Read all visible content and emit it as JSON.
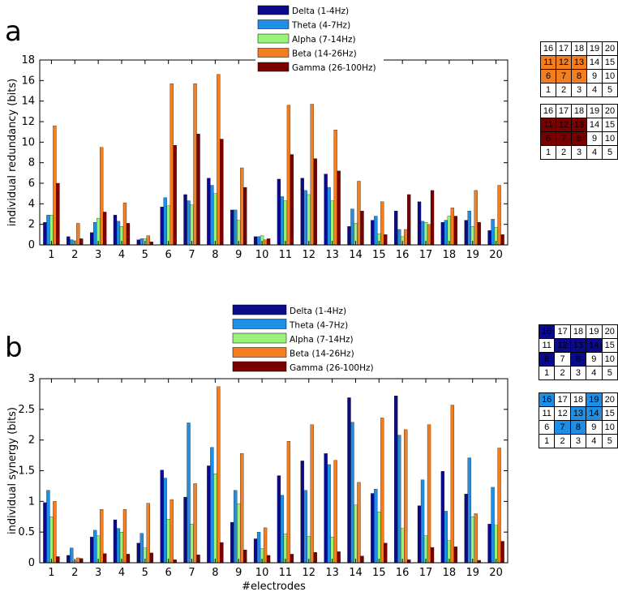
{
  "panels": [
    {
      "letter": "a"
    },
    {
      "letter": "b"
    }
  ],
  "chart_data": [
    {
      "type": "bar",
      "title": "",
      "xlabel": "",
      "ylabel": "individual redundancy (bits)",
      "ylim": [
        0,
        18
      ],
      "yticks": [
        0,
        2,
        4,
        6,
        8,
        10,
        12,
        14,
        16,
        18
      ],
      "categories": [
        "1",
        "2",
        "3",
        "4",
        "5",
        "6",
        "7",
        "8",
        "9",
        "10",
        "11",
        "12",
        "13",
        "14",
        "15",
        "16",
        "17",
        "18",
        "19",
        "20"
      ],
      "series": [
        {
          "name": "Delta (1-4Hz)",
          "color": "#0a0a8c",
          "values": [
            2.2,
            0.8,
            1.2,
            2.9,
            0.5,
            3.7,
            4.9,
            6.5,
            3.4,
            0.8,
            6.4,
            6.5,
            6.9,
            1.8,
            2.4,
            3.3,
            4.2,
            2.2,
            2.4,
            1.4
          ]
        },
        {
          "name": "Theta (4-7Hz)",
          "color": "#1f8fe6",
          "values": [
            2.9,
            0.5,
            2.2,
            2.3,
            0.6,
            4.6,
            4.3,
            5.8,
            3.4,
            0.8,
            4.7,
            5.3,
            5.6,
            3.5,
            2.8,
            1.5,
            2.3,
            2.4,
            3.3,
            2.5
          ]
        },
        {
          "name": "Alpha (7-14Hz)",
          "color": "#99f27a",
          "values": [
            2.9,
            0.4,
            2.6,
            1.8,
            0.6,
            3.8,
            3.9,
            5.0,
            2.4,
            0.9,
            4.3,
            4.9,
            4.3,
            2.1,
            1.1,
            0.8,
            2.2,
            2.8,
            1.8,
            1.7
          ]
        },
        {
          "name": "Beta (14-26Hz)",
          "color": "#f27e1f",
          "values": [
            11.6,
            2.1,
            9.5,
            4.1,
            0.9,
            15.7,
            15.7,
            16.6,
            7.5,
            0.5,
            13.6,
            13.7,
            11.2,
            6.2,
            4.2,
            1.5,
            2.0,
            3.6,
            5.3,
            5.8
          ]
        },
        {
          "name": "Gamma (26-100Hz)",
          "color": "#7a0000",
          "values": [
            6.0,
            0.6,
            3.2,
            2.1,
            0.3,
            9.7,
            10.8,
            10.3,
            5.6,
            0.6,
            8.8,
            8.4,
            7.2,
            3.3,
            1.0,
            4.9,
            5.3,
            2.8,
            2.2,
            1.0
          ]
        }
      ],
      "legend": "top-center"
    },
    {
      "type": "bar",
      "title": "",
      "xlabel": "#electrodes",
      "ylabel": "individual synergy (bits)",
      "ylim": [
        0,
        3
      ],
      "yticks": [
        0,
        0.5,
        1,
        1.5,
        2,
        2.5,
        3
      ],
      "categories": [
        "1",
        "2",
        "3",
        "4",
        "5",
        "6",
        "7",
        "8",
        "9",
        "10",
        "11",
        "12",
        "13",
        "14",
        "15",
        "16",
        "17",
        "18",
        "19",
        "20"
      ],
      "series": [
        {
          "name": "Delta (1-4Hz)",
          "color": "#0a0a8c",
          "values": [
            0.98,
            0.12,
            0.42,
            0.7,
            0.32,
            1.51,
            1.07,
            1.58,
            0.66,
            0.39,
            1.42,
            1.66,
            1.78,
            2.69,
            1.13,
            2.72,
            0.93,
            1.49,
            1.12,
            0.63
          ]
        },
        {
          "name": "Theta (4-7Hz)",
          "color": "#1f8fe6",
          "values": [
            1.18,
            0.24,
            0.53,
            0.56,
            0.48,
            1.38,
            2.28,
            1.88,
            1.18,
            0.5,
            1.1,
            1.18,
            1.6,
            2.29,
            1.2,
            2.08,
            1.35,
            0.84,
            1.71,
            1.23
          ]
        },
        {
          "name": "Alpha (7-14Hz)",
          "color": "#99f27a",
          "values": [
            0.75,
            0.03,
            0.44,
            0.5,
            0.24,
            0.71,
            0.63,
            1.45,
            0.96,
            0.23,
            0.47,
            0.43,
            0.42,
            0.94,
            0.83,
            0.56,
            0.44,
            0.36,
            0.75,
            0.61
          ]
        },
        {
          "name": "Beta (14-26Hz)",
          "color": "#f27e1f",
          "values": [
            1.0,
            0.08,
            0.87,
            0.87,
            0.97,
            1.03,
            1.29,
            2.87,
            1.78,
            0.57,
            1.98,
            2.25,
            1.67,
            1.31,
            2.36,
            2.17,
            2.25,
            2.57,
            0.8,
            1.87
          ]
        },
        {
          "name": "Gamma (26-100Hz)",
          "color": "#7a0000",
          "values": [
            0.1,
            0.07,
            0.15,
            0.14,
            0.16,
            0.05,
            0.13,
            0.33,
            0.21,
            0.12,
            0.14,
            0.17,
            0.18,
            0.11,
            0.32,
            0.05,
            0.25,
            0.26,
            0.04,
            0.35
          ]
        }
      ],
      "legend": "top-center"
    }
  ],
  "electrode_grids": [
    {
      "rows": [
        [
          "16",
          "17",
          "18",
          "19",
          "20"
        ],
        [
          "11",
          "12",
          "13",
          "14",
          "15"
        ],
        [
          "6",
          "7",
          "8",
          "9",
          "10"
        ],
        [
          "1",
          "2",
          "3",
          "4",
          "5"
        ]
      ],
      "highlight_color": "#f27e1f",
      "highlighted": [
        "11",
        "12",
        "13",
        "6",
        "7",
        "8"
      ]
    },
    {
      "rows": [
        [
          "16",
          "17",
          "18",
          "19",
          "20"
        ],
        [
          "11",
          "12",
          "13",
          "14",
          "15"
        ],
        [
          "6",
          "7",
          "8",
          "9",
          "10"
        ],
        [
          "1",
          "2",
          "3",
          "4",
          "5"
        ]
      ],
      "highlight_color": "#7a0000",
      "highlighted": [
        "11",
        "12",
        "13",
        "6",
        "7",
        "8"
      ]
    },
    {
      "rows": [
        [
          "16",
          "17",
          "18",
          "19",
          "20"
        ],
        [
          "11",
          "12",
          "13",
          "14",
          "15"
        ],
        [
          "6",
          "7",
          "8",
          "9",
          "10"
        ],
        [
          "1",
          "2",
          "3",
          "4",
          "5"
        ]
      ],
      "highlight_color": "#0a0a8c",
      "highlighted": [
        "16",
        "12",
        "13",
        "14",
        "6",
        "8"
      ]
    },
    {
      "rows": [
        [
          "16",
          "17",
          "18",
          "19",
          "20"
        ],
        [
          "11",
          "12",
          "13",
          "14",
          "15"
        ],
        [
          "6",
          "7",
          "8",
          "9",
          "10"
        ],
        [
          "1",
          "2",
          "3",
          "4",
          "5"
        ]
      ],
      "highlight_color": "#1f8fe6",
      "highlighted": [
        "16",
        "19",
        "13",
        "14",
        "7",
        "8"
      ]
    }
  ]
}
